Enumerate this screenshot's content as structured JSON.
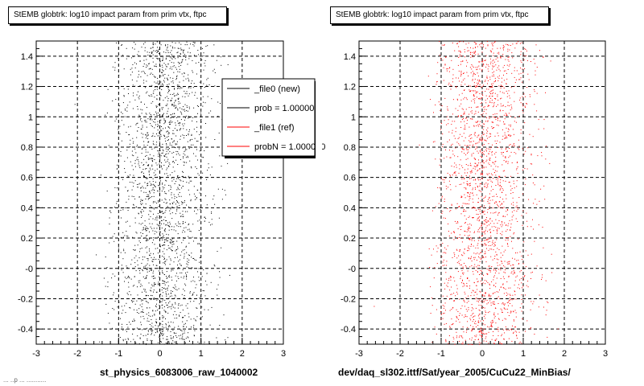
{
  "chart_data": [
    {
      "type": "scatter",
      "title": "StEMB globtrk: log10 impact param from prim vtx, ftpc",
      "xlabel": "st_physics_6083006_raw_1040002",
      "ylabel": "",
      "xlim": [
        -3,
        3
      ],
      "ylim": [
        -0.5,
        1.5
      ],
      "x_ticks": [
        "-3",
        "-2",
        "-1",
        "0",
        "1",
        "2",
        "3"
      ],
      "y_ticks": [
        "-0.4",
        "-0.2",
        "-0",
        "0.2",
        "0.4",
        "0.6",
        "0.8",
        "1",
        "1.2",
        "1.4"
      ],
      "grid": true,
      "marker_color": "#000000",
      "points_summary": "dense band of points centered near x=0, spanning x about -1 to 1.5, y -0.5 to 1.5",
      "legend": {
        "placement": "top-right",
        "entries": [
          {
            "label": "_file0 (new)",
            "color": "#000000"
          },
          {
            "label": "prob = 1.000000",
            "color": "#000000"
          },
          {
            "label": "_file1 (ref)",
            "color": "#ff0000"
          },
          {
            "label": "probN = 1.000000",
            "color": "#ff0000"
          }
        ]
      }
    },
    {
      "type": "scatter",
      "title": "StEMB globtrk: log10 impact param from prim vtx, ftpc",
      "xlabel": "dev/daq_sl302.ittf/Sat/year_2005/CuCu22_MinBias/",
      "ylabel": "",
      "xlim": [
        -3,
        3
      ],
      "ylim": [
        -0.5,
        1.5
      ],
      "x_ticks": [
        "-3",
        "-2",
        "-1",
        "0",
        "1",
        "2",
        "3"
      ],
      "y_ticks": [
        "-0.4",
        "-0.2",
        "-0",
        "0.2",
        "0.4",
        "0.6",
        "0.8",
        "1",
        "1.2",
        "1.4"
      ],
      "grid": true,
      "marker_color": "#ff0000",
      "points_summary": "dense band of points centered near x=0, spanning x about -1 to 1.5, y -0.5 to 1.5"
    }
  ],
  "footer_text": "... ..p ... ..........."
}
